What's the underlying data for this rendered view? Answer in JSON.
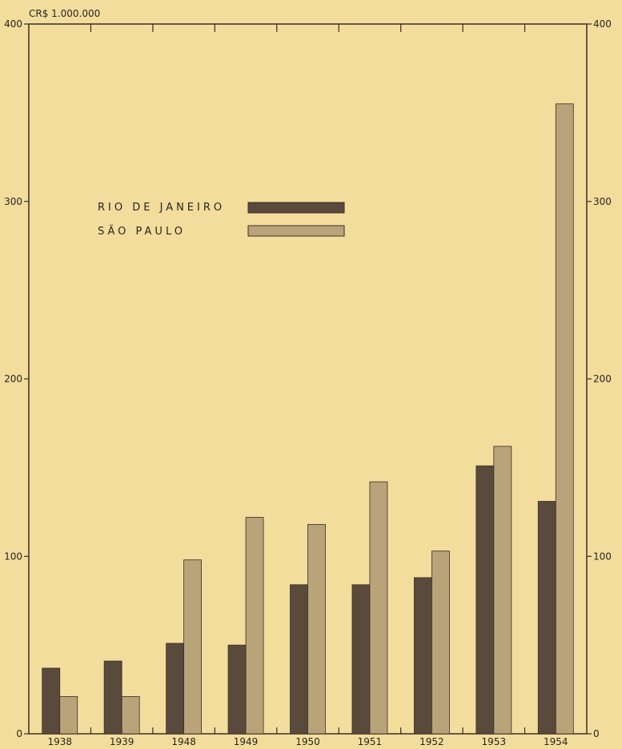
{
  "chart_data": {
    "type": "bar",
    "unit_label": "CR$  1.000.000",
    "categories": [
      "1938",
      "1939",
      "1948",
      "1949",
      "1950",
      "1951",
      "1952",
      "1953",
      "1954"
    ],
    "series": [
      {
        "name": "RIO DE JANEIRO",
        "values": [
          37,
          41,
          51,
          50,
          84,
          84,
          88,
          151,
          131
        ],
        "color": "#5a4a3c"
      },
      {
        "name": "SÃO PAULO",
        "values": [
          21,
          21,
          98,
          122,
          118,
          142,
          103,
          162,
          355
        ],
        "color": "#b9a47a"
      }
    ],
    "ylim": [
      0,
      400
    ],
    "y_ticks": [
      0,
      100,
      200,
      300,
      400
    ],
    "legend": "upper-left",
    "grid": false
  }
}
